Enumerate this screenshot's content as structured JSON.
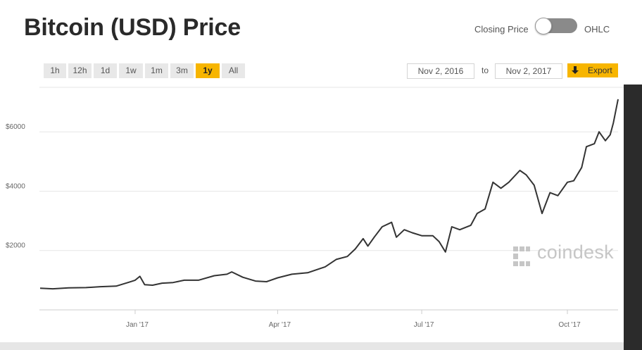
{
  "header": {
    "title": "Bitcoin (USD) Price",
    "toggle_left_label": "Closing Price",
    "toggle_right_label": "OHLC"
  },
  "range_buttons": [
    "1h",
    "12h",
    "1d",
    "1w",
    "1m",
    "3m",
    "1y",
    "All"
  ],
  "active_range": "1y",
  "date_range": {
    "from": "Nov 2, 2016",
    "separator": "to",
    "to": "Nov 2, 2017"
  },
  "export": {
    "label": "Export",
    "icon": "download-arrow-icon"
  },
  "watermark": {
    "text": "coindesk",
    "icon": "coindesk-logo-icon"
  },
  "colors": {
    "accent": "#f7b500",
    "line": "#333333",
    "grid": "#e6e6e6"
  },
  "chart_data": {
    "type": "line",
    "title": "",
    "xlabel": "",
    "ylabel": "",
    "x_ticks": [
      "Jan '17",
      "Apr '17",
      "Jul '17",
      "Oct '17"
    ],
    "y_ticks": [
      "$2000",
      "$4000",
      "$6000"
    ],
    "x_range": [
      "2016-11-02",
      "2017-11-02"
    ],
    "ylim": [
      0,
      7500
    ],
    "grid": "horizontal",
    "legend": "none",
    "series": [
      {
        "x": [
          "2016-11-02",
          "2016-11-10",
          "2016-11-20",
          "2016-12-01",
          "2016-12-10",
          "2016-12-20",
          "2016-12-28",
          "2017-01-01",
          "2017-01-04",
          "2017-01-07",
          "2017-01-12",
          "2017-01-18",
          "2017-01-25",
          "2017-02-01",
          "2017-02-10",
          "2017-02-20",
          "2017-02-28",
          "2017-03-03",
          "2017-03-10",
          "2017-03-18",
          "2017-03-25",
          "2017-04-01",
          "2017-04-10",
          "2017-04-20",
          "2017-05-01",
          "2017-05-08",
          "2017-05-15",
          "2017-05-20",
          "2017-05-25",
          "2017-05-28",
          "2017-06-01",
          "2017-06-06",
          "2017-06-12",
          "2017-06-15",
          "2017-06-20",
          "2017-06-25",
          "2017-07-01",
          "2017-07-08",
          "2017-07-12",
          "2017-07-16",
          "2017-07-20",
          "2017-07-25",
          "2017-08-01",
          "2017-08-05",
          "2017-08-10",
          "2017-08-15",
          "2017-08-20",
          "2017-08-25",
          "2017-09-01",
          "2017-09-05",
          "2017-09-10",
          "2017-09-15",
          "2017-09-20",
          "2017-09-25",
          "2017-10-01",
          "2017-10-05",
          "2017-10-10",
          "2017-10-13",
          "2017-10-18",
          "2017-10-21",
          "2017-10-25",
          "2017-10-28",
          "2017-10-30",
          "2017-11-02"
        ],
        "y": [
          730,
          710,
          740,
          750,
          780,
          800,
          930,
          1000,
          1130,
          850,
          830,
          900,
          920,
          1000,
          1000,
          1150,
          1200,
          1280,
          1100,
          970,
          950,
          1080,
          1200,
          1250,
          1450,
          1700,
          1800,
          2050,
          2400,
          2150,
          2450,
          2800,
          2950,
          2450,
          2700,
          2600,
          2500,
          2500,
          2300,
          1950,
          2800,
          2700,
          2850,
          3250,
          3400,
          4300,
          4100,
          4300,
          4700,
          4550,
          4200,
          3250,
          3950,
          3850,
          4300,
          4350,
          4800,
          5500,
          5600,
          6000,
          5700,
          5900,
          6300,
          7100
        ]
      }
    ]
  }
}
